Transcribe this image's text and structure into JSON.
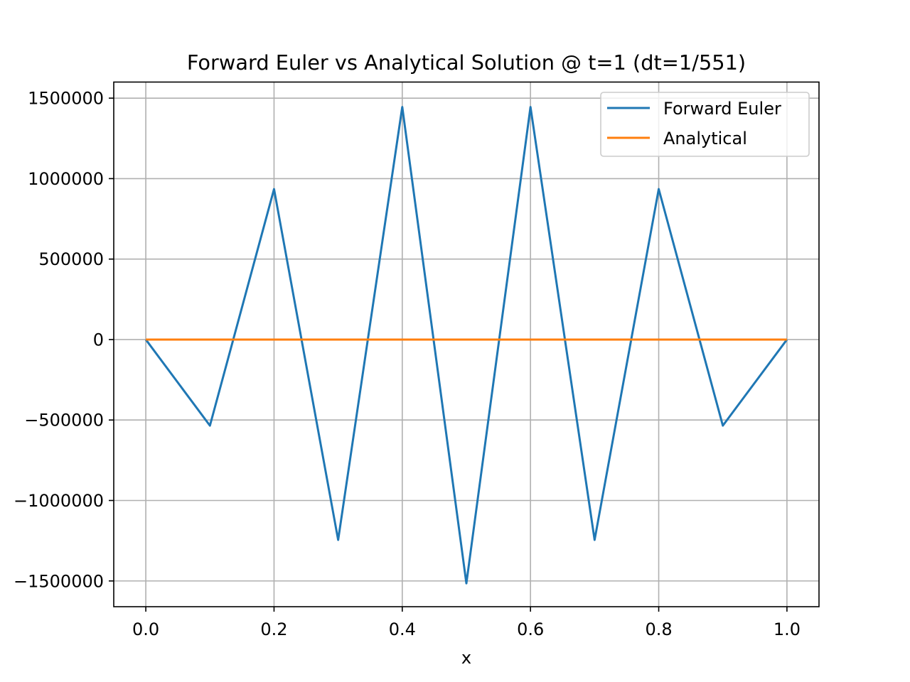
{
  "chart_data": {
    "type": "line",
    "title": "Forward Euler vs Analytical Solution @ t=1 (dt=1/551)",
    "xlabel": "x",
    "ylabel": "",
    "xlim": [
      -0.05,
      1.05
    ],
    "ylim": [
      -1660000,
      1600000
    ],
    "x_ticks": [
      0.0,
      0.2,
      0.4,
      0.6,
      0.8,
      1.0
    ],
    "x_tick_labels": [
      "0.0",
      "0.2",
      "0.4",
      "0.6",
      "0.8",
      "1.0"
    ],
    "y_ticks": [
      1500000,
      1000000,
      500000,
      0,
      -500000,
      -1000000,
      -1500000
    ],
    "y_tick_labels": [
      "1500000",
      "1000000",
      "500000",
      "0",
      "−500000",
      "−1000000",
      "−1500000"
    ],
    "grid": true,
    "legend_position": "upper right",
    "series": [
      {
        "name": "Forward Euler",
        "color": "#1f77b4",
        "x": [
          0.0,
          0.1,
          0.2,
          0.3,
          0.4,
          0.5,
          0.6,
          0.7,
          0.8,
          0.9,
          1.0
        ],
        "y": [
          0,
          -535000,
          935000,
          -1245000,
          1445000,
          -1515000,
          1445000,
          -1245000,
          935000,
          -535000,
          0
        ]
      },
      {
        "name": "Analytical",
        "color": "#ff7f0e",
        "x": [
          0.0,
          0.1,
          0.2,
          0.3,
          0.4,
          0.5,
          0.6,
          0.7,
          0.8,
          0.9,
          1.0
        ],
        "y": [
          0,
          0,
          0,
          0,
          0,
          0,
          0,
          0,
          0,
          0,
          0
        ]
      }
    ]
  }
}
